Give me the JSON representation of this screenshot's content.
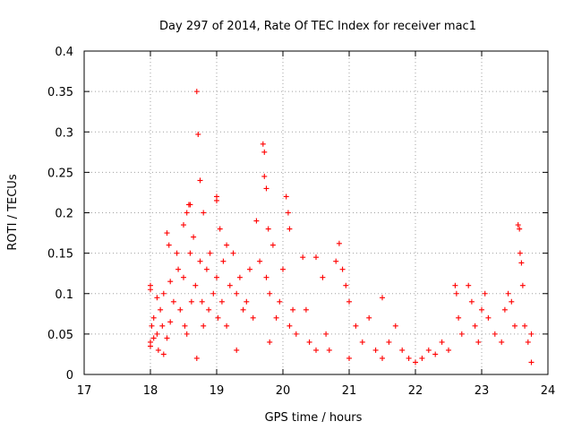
{
  "chart_data": {
    "type": "scatter",
    "title": "Day 297 of 2014, Rate Of TEC Index for receiver mac1",
    "xlabel": "GPS time / hours",
    "ylabel": "ROTI / TECUs",
    "xlim": [
      17,
      24
    ],
    "ylim": [
      0,
      0.4
    ],
    "xticks": [
      17,
      18,
      19,
      20,
      21,
      22,
      23,
      24
    ],
    "xtick_labels": [
      "17",
      "18",
      "19",
      "20",
      "21",
      "22",
      "23",
      "24"
    ],
    "yticks": [
      0,
      0.05,
      0.1,
      0.15,
      0.2,
      0.25,
      0.3,
      0.35,
      0.4
    ],
    "ytick_labels": [
      "0",
      "0.05",
      "0.1",
      "0.15",
      "0.2",
      "0.25",
      "0.3",
      "0.35",
      "0.4"
    ],
    "grid": true,
    "marker": "+",
    "color": "#ff0000",
    "series": [
      {
        "name": "mac1",
        "points": [
          [
            18.0,
            0.11
          ],
          [
            18.0,
            0.105
          ],
          [
            18.0,
            0.04
          ],
          [
            18.0,
            0.035
          ],
          [
            18.02,
            0.06
          ],
          [
            18.05,
            0.07
          ],
          [
            18.05,
            0.045
          ],
          [
            18.1,
            0.095
          ],
          [
            18.1,
            0.05
          ],
          [
            18.12,
            0.03
          ],
          [
            18.15,
            0.08
          ],
          [
            18.18,
            0.06
          ],
          [
            18.2,
            0.1
          ],
          [
            18.2,
            0.025
          ],
          [
            18.25,
            0.175
          ],
          [
            18.25,
            0.045
          ],
          [
            18.28,
            0.16
          ],
          [
            18.3,
            0.115
          ],
          [
            18.3,
            0.065
          ],
          [
            18.35,
            0.09
          ],
          [
            18.4,
            0.15
          ],
          [
            18.42,
            0.13
          ],
          [
            18.45,
            0.08
          ],
          [
            18.5,
            0.185
          ],
          [
            18.5,
            0.12
          ],
          [
            18.52,
            0.06
          ],
          [
            18.55,
            0.2
          ],
          [
            18.55,
            0.05
          ],
          [
            18.58,
            0.21
          ],
          [
            18.6,
            0.21
          ],
          [
            18.6,
            0.15
          ],
          [
            18.62,
            0.09
          ],
          [
            18.65,
            0.17
          ],
          [
            18.68,
            0.11
          ],
          [
            18.7,
            0.35
          ],
          [
            18.7,
            0.02
          ],
          [
            18.72,
            0.297
          ],
          [
            18.75,
            0.24
          ],
          [
            18.75,
            0.14
          ],
          [
            18.78,
            0.09
          ],
          [
            18.8,
            0.2
          ],
          [
            18.8,
            0.06
          ],
          [
            18.85,
            0.13
          ],
          [
            18.88,
            0.08
          ],
          [
            18.9,
            0.15
          ],
          [
            18.95,
            0.1
          ],
          [
            19.0,
            0.22
          ],
          [
            19.0,
            0.215
          ],
          [
            19.0,
            0.12
          ],
          [
            19.02,
            0.07
          ],
          [
            19.05,
            0.18
          ],
          [
            19.08,
            0.09
          ],
          [
            19.1,
            0.14
          ],
          [
            19.15,
            0.16
          ],
          [
            19.15,
            0.06
          ],
          [
            19.2,
            0.11
          ],
          [
            19.25,
            0.15
          ],
          [
            19.3,
            0.1
          ],
          [
            19.3,
            0.03
          ],
          [
            19.35,
            0.12
          ],
          [
            19.4,
            0.08
          ],
          [
            19.45,
            0.09
          ],
          [
            19.5,
            0.13
          ],
          [
            19.55,
            0.07
          ],
          [
            19.6,
            0.19
          ],
          [
            19.65,
            0.14
          ],
          [
            19.7,
            0.285
          ],
          [
            19.72,
            0.275
          ],
          [
            19.72,
            0.245
          ],
          [
            19.75,
            0.23
          ],
          [
            19.75,
            0.12
          ],
          [
            19.78,
            0.18
          ],
          [
            19.8,
            0.1
          ],
          [
            19.8,
            0.04
          ],
          [
            19.85,
            0.16
          ],
          [
            19.9,
            0.07
          ],
          [
            19.95,
            0.09
          ],
          [
            20.0,
            0.13
          ],
          [
            20.05,
            0.22
          ],
          [
            20.08,
            0.2
          ],
          [
            20.1,
            0.18
          ],
          [
            20.1,
            0.06
          ],
          [
            20.15,
            0.08
          ],
          [
            20.2,
            0.05
          ],
          [
            20.3,
            0.145
          ],
          [
            20.35,
            0.08
          ],
          [
            20.4,
            0.04
          ],
          [
            20.5,
            0.145
          ],
          [
            20.5,
            0.03
          ],
          [
            20.6,
            0.12
          ],
          [
            20.65,
            0.05
          ],
          [
            20.7,
            0.03
          ],
          [
            20.8,
            0.14
          ],
          [
            20.85,
            0.162
          ],
          [
            20.9,
            0.13
          ],
          [
            20.95,
            0.11
          ],
          [
            21.0,
            0.09
          ],
          [
            21.0,
            0.02
          ],
          [
            21.1,
            0.06
          ],
          [
            21.2,
            0.04
          ],
          [
            21.3,
            0.07
          ],
          [
            21.4,
            0.03
          ],
          [
            21.5,
            0.095
          ],
          [
            21.5,
            0.02
          ],
          [
            21.6,
            0.04
          ],
          [
            21.7,
            0.06
          ],
          [
            21.8,
            0.03
          ],
          [
            21.9,
            0.02
          ],
          [
            22.0,
            0.015
          ],
          [
            22.1,
            0.02
          ],
          [
            22.2,
            0.03
          ],
          [
            22.3,
            0.025
          ],
          [
            22.4,
            0.04
          ],
          [
            22.5,
            0.03
          ],
          [
            22.6,
            0.11
          ],
          [
            22.62,
            0.1
          ],
          [
            22.65,
            0.07
          ],
          [
            22.7,
            0.05
          ],
          [
            22.8,
            0.11
          ],
          [
            22.85,
            0.09
          ],
          [
            22.9,
            0.06
          ],
          [
            22.95,
            0.04
          ],
          [
            23.0,
            0.08
          ],
          [
            23.05,
            0.1
          ],
          [
            23.1,
            0.07
          ],
          [
            23.2,
            0.05
          ],
          [
            23.3,
            0.04
          ],
          [
            23.35,
            0.08
          ],
          [
            23.4,
            0.1
          ],
          [
            23.45,
            0.09
          ],
          [
            23.5,
            0.06
          ],
          [
            23.55,
            0.185
          ],
          [
            23.57,
            0.18
          ],
          [
            23.58,
            0.15
          ],
          [
            23.6,
            0.138
          ],
          [
            23.62,
            0.11
          ],
          [
            23.65,
            0.06
          ],
          [
            23.7,
            0.04
          ],
          [
            23.75,
            0.05
          ],
          [
            23.75,
            0.015
          ]
        ]
      }
    ]
  }
}
